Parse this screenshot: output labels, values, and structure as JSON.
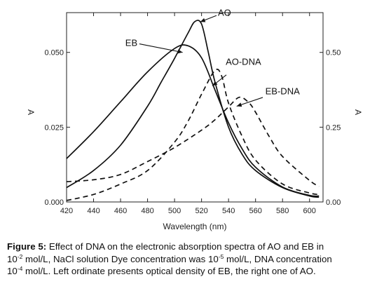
{
  "chart_data": {
    "type": "line",
    "xlabel": "Wavelength (nm)",
    "ylabel_left": "A",
    "ylabel_right": "A",
    "xlim": [
      420,
      610
    ],
    "ylim_left": [
      0,
      0.0633
    ],
    "ylim_right": [
      0,
      0.633
    ],
    "x_ticks": [
      420,
      440,
      460,
      480,
      500,
      520,
      540,
      560,
      580,
      600
    ],
    "y_ticks_left": [
      {
        "value": 0,
        "label": "0.000"
      },
      {
        "value": 0.025,
        "label": "0.025"
      },
      {
        "value": 0.05,
        "label": "0.050"
      }
    ],
    "y_ticks_right": [
      {
        "value": 0,
        "label": "0.00"
      },
      {
        "value": 0.25,
        "label": "0.25"
      },
      {
        "value": 0.5,
        "label": "0.50"
      }
    ],
    "series": [
      {
        "name": "AO",
        "style": "solid",
        "axis": "right",
        "x": [
          420,
          440,
          460,
          480,
          490,
          500,
          510,
          515,
          520,
          525,
          530,
          540,
          550,
          560,
          580,
          600,
          607
        ],
        "y": [
          0.048,
          0.105,
          0.19,
          0.32,
          0.4,
          0.48,
          0.565,
          0.603,
          0.595,
          0.5,
          0.4,
          0.25,
          0.16,
          0.105,
          0.048,
          0.02,
          0.016
        ]
      },
      {
        "name": "EB",
        "style": "solid",
        "axis": "left",
        "x": [
          420,
          440,
          460,
          480,
          500,
          510,
          520,
          530,
          540,
          550,
          560,
          580,
          600,
          607
        ],
        "y": [
          0.0145,
          0.0235,
          0.0335,
          0.0435,
          0.0513,
          0.0522,
          0.0482,
          0.0374,
          0.0264,
          0.0178,
          0.0116,
          0.005,
          0.0022,
          0.002
        ]
      },
      {
        "name": "AO-DNA",
        "style": "dashed",
        "axis": "right",
        "x": [
          420,
          440,
          460,
          480,
          500,
          510,
          520,
          530,
          535,
          540,
          550,
          560,
          580,
          600,
          607
        ],
        "y": [
          0.005,
          0.025,
          0.06,
          0.105,
          0.2,
          0.27,
          0.36,
          0.44,
          0.42,
          0.33,
          0.22,
          0.14,
          0.06,
          0.03,
          0.025
        ]
      },
      {
        "name": "EB-DNA",
        "style": "dashed",
        "axis": "left",
        "x": [
          420,
          440,
          460,
          480,
          500,
          520,
          530,
          540,
          548,
          555,
          560,
          570,
          580,
          600,
          607
        ],
        "y": [
          0.0068,
          0.0074,
          0.0092,
          0.0135,
          0.0182,
          0.024,
          0.0275,
          0.0318,
          0.035,
          0.0332,
          0.03,
          0.022,
          0.0152,
          0.0072,
          0.0052
        ]
      }
    ],
    "annotations": [
      {
        "text": "AO",
        "points_to": {
          "x": 519,
          "y": 0.0602
        },
        "label_at": {
          "x": 537,
          "y": 0.0622
        }
      },
      {
        "text": "EB",
        "points_to": {
          "x": 506,
          "y": 0.05
        },
        "label_at": {
          "x": 468,
          "y": 0.0522
        }
      },
      {
        "text": "AO-DNA",
        "points_to": {
          "x": 528,
          "y": 0.0388
        },
        "label_at": {
          "x": 551,
          "y": 0.0458
        }
      },
      {
        "text": "EB-DNA",
        "points_to": {
          "x": 546,
          "y": 0.032
        },
        "label_at": {
          "x": 580,
          "y": 0.036
        }
      }
    ],
    "grid": false
  },
  "caption": {
    "label": "Figure 5:",
    "line1": "Effect of DNA on the electronic absorption spectra of AO and EB in",
    "line2_a": "10",
    "line2_sup1": "-2",
    "line2_b": " mol/L, NaCl solution Dye concentration was 10",
    "line2_sup2": "-5",
    "line2_c": " mol/L, DNA concentration",
    "line3_a": "10",
    "line3_sup": "-4",
    "line3_b": " mol/L. Left ordinate presents optical density of EB, the right one of AO."
  }
}
